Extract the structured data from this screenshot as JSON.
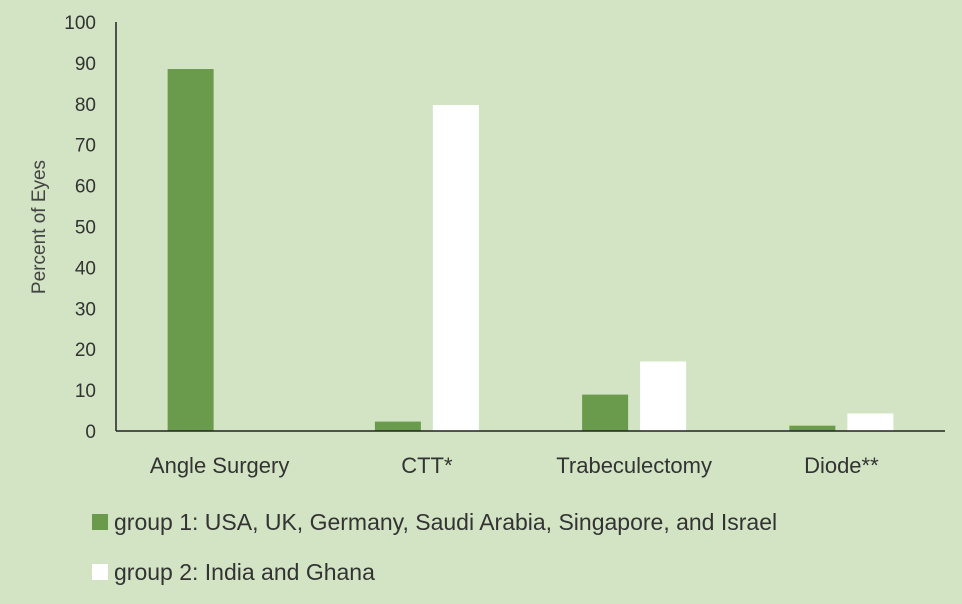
{
  "chart_data": {
    "type": "bar",
    "title": "",
    "xlabel": "",
    "ylabel": "Percent of Eyes",
    "ylim": [
      0,
      100
    ],
    "yticks": [
      0,
      10,
      20,
      30,
      40,
      50,
      60,
      70,
      80,
      90,
      100
    ],
    "grid": false,
    "legend_position": "bottom-left",
    "categories": [
      "Angle Surgery",
      "CTT*",
      "Trabeculectomy",
      "Diode**"
    ],
    "series": [
      {
        "name": "group 1: USA, UK, Germany, Saudi Arabia, Singapore, and Israel",
        "color": "#6a9a4c",
        "values": [
          88.5,
          2.3,
          8.9,
          1.3
        ]
      },
      {
        "name": "group 2: India and Ghana",
        "color": "#ffffff",
        "values": [
          0,
          79.7,
          17.0,
          4.3
        ]
      }
    ]
  }
}
